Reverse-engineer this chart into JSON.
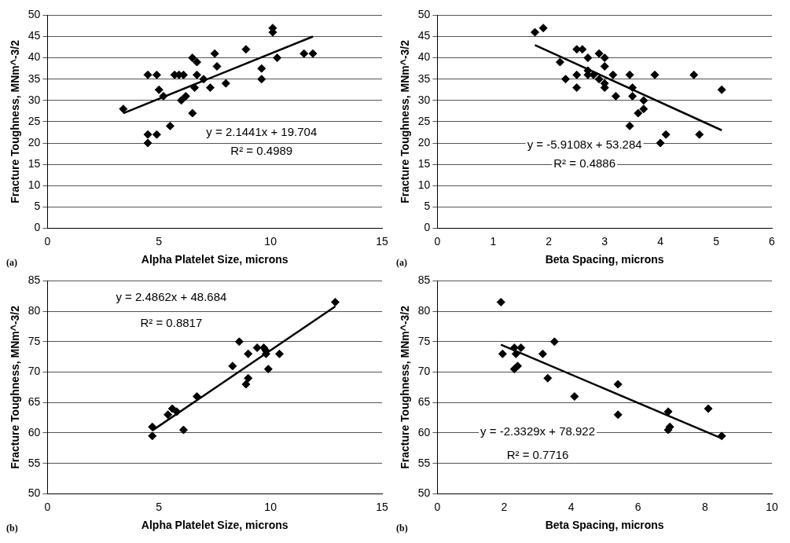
{
  "chart_data": [
    {
      "type": "scatter",
      "xlabel": "Alpha Platelet Size, microns",
      "ylabel": "Fracture Toughness, MNm^-3/2",
      "xlim": [
        0,
        15
      ],
      "xticks": [
        0,
        5,
        10,
        15
      ],
      "ylim": [
        0,
        50
      ],
      "yticks": [
        0,
        5,
        10,
        15,
        20,
        25,
        30,
        35,
        40,
        45,
        50
      ],
      "grid": "y",
      "legend": false,
      "annotations": [
        "y = 2.1441x + 19.704",
        "R² = 0.4989",
        "(a)"
      ],
      "series": [
        {
          "color": "#000000",
          "marker": "diamond",
          "x": [
            3.4,
            4.5,
            4.5,
            4.5,
            4.9,
            5.0,
            4.9,
            5.2,
            5.5,
            5.7,
            5.9,
            6.0,
            6.1,
            6.2,
            6.5,
            6.5,
            6.6,
            6.7,
            6.7,
            7.0,
            7.3,
            7.5,
            7.6,
            8.0,
            8.9,
            9.6,
            9.6,
            10.1,
            10.1,
            10.3,
            11.5,
            11.9
          ],
          "values": [
            28,
            36,
            22,
            20,
            36,
            32.5,
            22,
            31,
            24,
            36,
            36,
            30,
            36,
            31,
            27,
            40,
            33,
            39,
            36,
            35,
            33,
            41,
            38,
            34,
            42,
            37.5,
            35,
            47,
            46,
            40,
            41,
            41
          ]
        },
        {
          "type": "line",
          "color": "#000000",
          "x": [
            3.4,
            11.9
          ],
          "values": [
            27,
            45
          ]
        }
      ]
    },
    {
      "type": "scatter",
      "xlabel": "Beta Spacing, microns",
      "ylabel": "Fracture Toughness, MNm^-3/2",
      "xlim": [
        0,
        6
      ],
      "xticks": [
        0,
        1,
        2,
        3,
        4,
        5,
        6
      ],
      "ylim": [
        0,
        50
      ],
      "yticks": [
        0,
        5,
        10,
        15,
        20,
        25,
        30,
        35,
        40,
        45,
        50
      ],
      "grid": "y",
      "legend": false,
      "annotations": [
        "y = -5.9108x + 53.284",
        "R² = 0.4886",
        "(a)"
      ],
      "series": [
        {
          "color": "#000000",
          "marker": "diamond",
          "x": [
            1.75,
            1.9,
            2.2,
            2.3,
            2.5,
            2.5,
            2.5,
            2.6,
            2.7,
            2.7,
            2.7,
            2.8,
            2.9,
            2.9,
            3.0,
            3.0,
            3.0,
            3.0,
            3.15,
            3.2,
            3.45,
            3.45,
            3.5,
            3.5,
            3.6,
            3.7,
            3.7,
            3.9,
            4.0,
            4.1,
            4.6,
            4.7,
            5.1
          ],
          "values": [
            46,
            47,
            39,
            35,
            36,
            33,
            42,
            42,
            40,
            37,
            36,
            36,
            35,
            41,
            40,
            38,
            34,
            33,
            36,
            31,
            36,
            24,
            33,
            31,
            27,
            30,
            28,
            36,
            20,
            22,
            36,
            22,
            32.5
          ]
        },
        {
          "type": "line",
          "color": "#000000",
          "x": [
            1.75,
            5.1
          ],
          "values": [
            43,
            23
          ]
        }
      ]
    },
    {
      "type": "scatter",
      "xlabel": "Alpha Platelet Size, microns",
      "ylabel": "Fracture Toughness, MNm^-3/2",
      "xlim": [
        0,
        15
      ],
      "xticks": [
        0,
        5,
        10,
        15
      ],
      "ylim": [
        50,
        85
      ],
      "yticks": [
        50,
        55,
        60,
        65,
        70,
        75,
        80,
        85
      ],
      "grid": "y",
      "legend": false,
      "annotations": [
        "y = 2.4862x + 48.684",
        "R² = 0.8817",
        "(b)"
      ],
      "series": [
        {
          "color": "#000000",
          "marker": "diamond",
          "x": [
            4.7,
            4.7,
            5.4,
            5.6,
            5.8,
            6.1,
            6.7,
            8.3,
            8.6,
            8.9,
            9.0,
            9.0,
            9.4,
            9.7,
            9.8,
            9.8,
            9.9,
            10.4,
            12.9
          ],
          "values": [
            61,
            59.5,
            63,
            64,
            63.5,
            60.5,
            66,
            71,
            75,
            68,
            69,
            73,
            74,
            74,
            73,
            73.5,
            70.5,
            73,
            81.5
          ]
        },
        {
          "type": "line",
          "color": "#000000",
          "x": [
            4.7,
            12.9
          ],
          "values": [
            60.4,
            80.8
          ]
        }
      ]
    },
    {
      "type": "scatter",
      "xlabel": "Beta Spacing, microns",
      "ylabel": "Fracture Toughness, MNm^-3/2",
      "xlim": [
        0,
        10
      ],
      "xticks": [
        0,
        2,
        4,
        6,
        8,
        10
      ],
      "ylim": [
        50,
        85
      ],
      "yticks": [
        50,
        55,
        60,
        65,
        70,
        75,
        80,
        85
      ],
      "grid": "y",
      "legend": false,
      "annotations": [
        "y = -2.3329x + 78.922",
        "R² = 0.7716",
        "(b)"
      ],
      "series": [
        {
          "color": "#000000",
          "marker": "diamond",
          "x": [
            1.9,
            1.95,
            2.3,
            2.3,
            2.35,
            2.4,
            2.5,
            3.15,
            3.3,
            3.5,
            4.1,
            5.4,
            5.4,
            6.9,
            6.9,
            6.95,
            8.1,
            8.5
          ],
          "values": [
            81.5,
            73,
            74,
            70.5,
            73,
            71,
            74,
            73,
            69,
            75,
            66,
            68,
            63,
            63.5,
            60.5,
            61,
            64,
            59.5
          ]
        },
        {
          "type": "line",
          "color": "#000000",
          "x": [
            1.9,
            8.5
          ],
          "values": [
            74.5,
            59.1
          ]
        }
      ]
    }
  ]
}
